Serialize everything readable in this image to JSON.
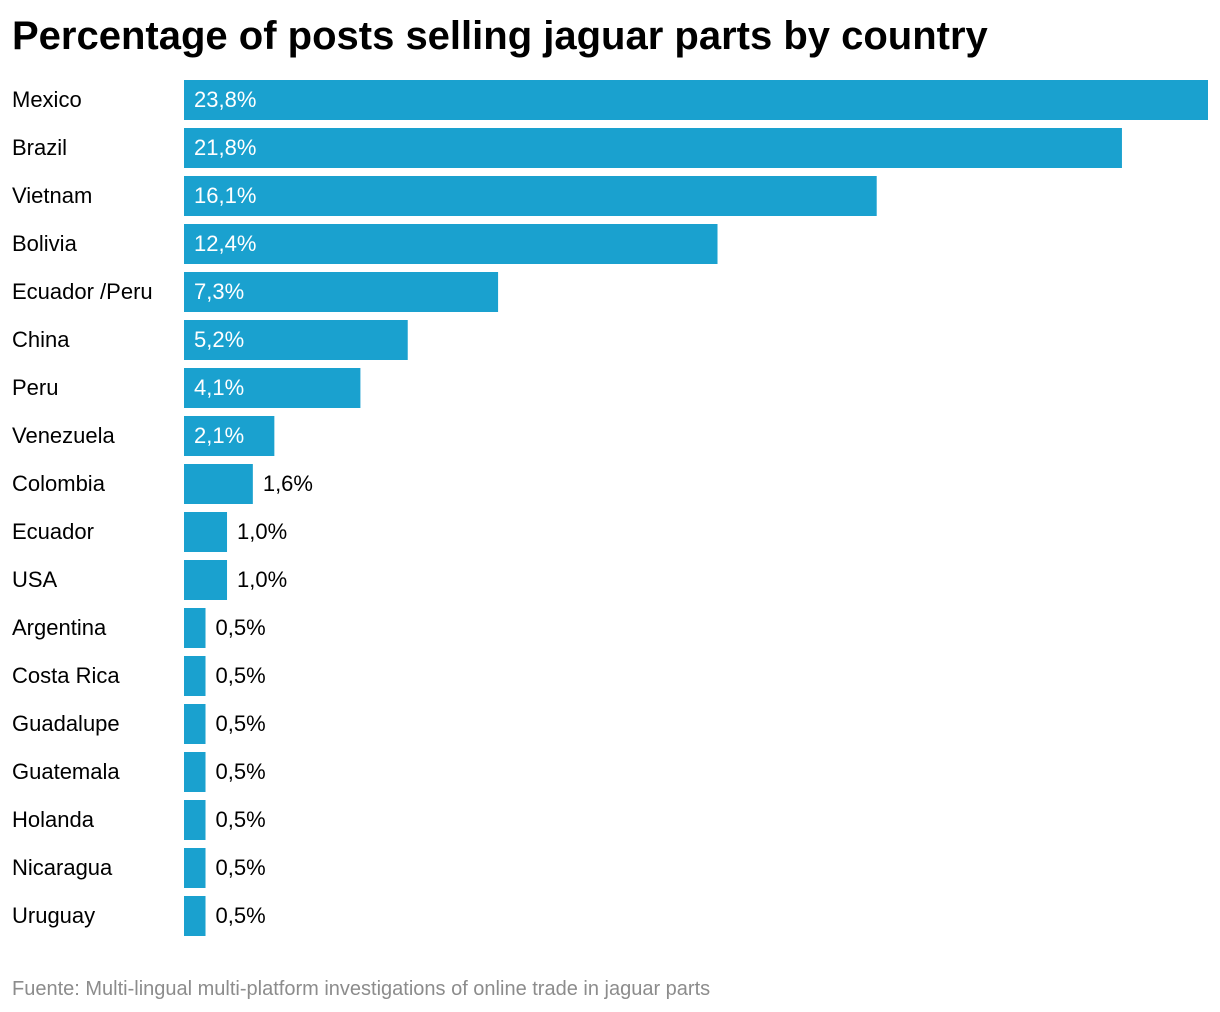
{
  "title": "Percentage of posts selling jaguar parts by country",
  "source": "Fuente: Multi-lingual multi-platform investigations of online trade in jaguar parts",
  "colors": {
    "bar": "#1aa1cf",
    "label_inside": "#ffffff",
    "label_outside": "#000000",
    "category": "#000000",
    "source": "#8c8c8c"
  },
  "chart_data": {
    "type": "bar",
    "orientation": "horizontal",
    "title": "Percentage of posts selling jaguar parts by country",
    "categories": [
      "Mexico",
      "Brazil",
      "Vietnam",
      "Bolivia",
      "Ecuador /Peru",
      "China",
      "Peru",
      "Venezuela",
      "Colombia",
      "Ecuador",
      "USA",
      "Argentina",
      "Costa Rica",
      "Guadalupe",
      "Guatemala",
      "Holanda",
      "Nicaragua",
      "Uruguay"
    ],
    "values": [
      23.8,
      21.8,
      16.1,
      12.4,
      7.3,
      5.2,
      4.1,
      2.1,
      1.6,
      1.0,
      1.0,
      0.5,
      0.5,
      0.5,
      0.5,
      0.5,
      0.5,
      0.5
    ],
    "value_labels": [
      "23,8%",
      "21,8%",
      "16,1%",
      "12,4%",
      "7,3%",
      "5,2%",
      "4,1%",
      "2,1%",
      "1,6%",
      "1,0%",
      "1,0%",
      "0,5%",
      "0,5%",
      "0,5%",
      "0,5%",
      "0,5%",
      "0,5%",
      "0,5%"
    ],
    "xlim": [
      0,
      23.8
    ],
    "grid": false,
    "legend": "none",
    "source": "Fuente: Multi-lingual multi-platform investigations of online trade in jaguar parts"
  }
}
